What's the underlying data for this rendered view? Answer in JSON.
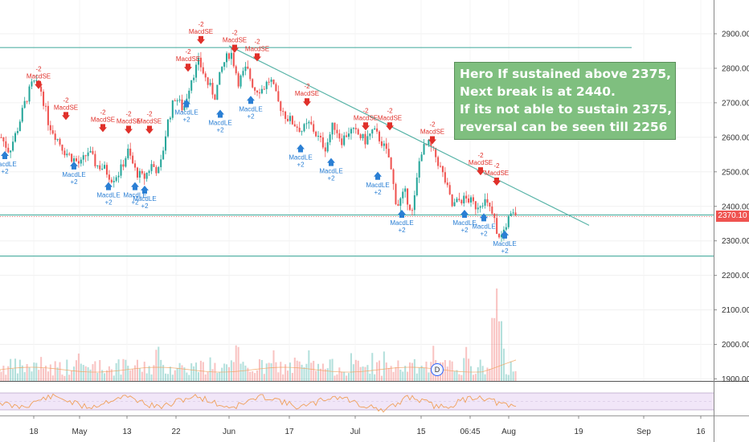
{
  "chart_data": {
    "type": "candlestick",
    "price_axis": {
      "ticks": [
        "2900.00",
        "2800.00",
        "2700.00",
        "2600.00",
        "2500.00",
        "2400.00",
        "2300.00",
        "2200.00",
        "2100.00",
        "2000.00",
        "1900.00"
      ],
      "range": [
        1880,
        2960
      ],
      "last_price_label": "2370.10"
    },
    "time_axis": {
      "ticks": [
        "18",
        "May",
        "13",
        "22",
        "Jun",
        "17",
        "Jul",
        "15",
        "06:45",
        "Aug",
        "19",
        "Sep",
        "16"
      ]
    },
    "horizontal_levels": [
      2860,
      2375,
      2256
    ],
    "trendline": {
      "from": [
        "2019-06-01",
        2865
      ],
      "to": [
        "2019-08-24",
        2345
      ]
    },
    "price_path": [
      [
        0,
        2600
      ],
      [
        0.02,
        2560
      ],
      [
        0.04,
        2620
      ],
      [
        0.06,
        2700
      ],
      [
        0.08,
        2760
      ],
      [
        0.1,
        2740
      ],
      [
        0.12,
        2640
      ],
      [
        0.14,
        2600
      ],
      [
        0.16,
        2560
      ],
      [
        0.18,
        2540
      ],
      [
        0.2,
        2520
      ],
      [
        0.22,
        2560
      ],
      [
        0.24,
        2520
      ],
      [
        0.26,
        2510
      ],
      [
        0.28,
        2480
      ],
      [
        0.3,
        2500
      ],
      [
        0.32,
        2560
      ],
      [
        0.34,
        2500
      ],
      [
        0.36,
        2480
      ],
      [
        0.38,
        2520
      ],
      [
        0.4,
        2500
      ],
      [
        0.42,
        2640
      ],
      [
        0.44,
        2720
      ],
      [
        0.46,
        2680
      ],
      [
        0.48,
        2770
      ],
      [
        0.5,
        2820
      ],
      [
        0.52,
        2760
      ],
      [
        0.54,
        2720
      ],
      [
        0.56,
        2810
      ],
      [
        0.58,
        2850
      ],
      [
        0.6,
        2760
      ],
      [
        0.62,
        2800
      ],
      [
        0.64,
        2740
      ],
      [
        0.66,
        2740
      ],
      [
        0.68,
        2770
      ],
      [
        0.7,
        2700
      ],
      [
        0.72,
        2660
      ],
      [
        0.74,
        2640
      ],
      [
        0.76,
        2620
      ],
      [
        0.78,
        2640
      ],
      [
        0.8,
        2600
      ],
      [
        0.82,
        2570
      ],
      [
        0.84,
        2640
      ],
      [
        0.86,
        2590
      ],
      [
        0.88,
        2620
      ],
      [
        0.9,
        2610
      ],
      [
        0.92,
        2590
      ],
      [
        0.94,
        2620
      ],
      [
        0.96,
        2590
      ],
      [
        0.98,
        2540
      ],
      [
        1.0,
        2400
      ],
      [
        1.02,
        2440
      ],
      [
        1.04,
        2380
      ],
      [
        1.06,
        2560
      ],
      [
        1.08,
        2580
      ],
      [
        1.1,
        2540
      ],
      [
        1.12,
        2480
      ],
      [
        1.14,
        2400
      ],
      [
        1.16,
        2420
      ],
      [
        1.18,
        2420
      ],
      [
        1.2,
        2400
      ],
      [
        1.22,
        2420
      ],
      [
        1.24,
        2380
      ],
      [
        1.26,
        2300
      ],
      [
        1.28,
        2360
      ],
      [
        1.3,
        2380
      ]
    ],
    "volume_pattern": "bars scaled by daily volume, spike near end of July",
    "signals": {
      "sell_label": "MacdSE",
      "sell_count": "-2",
      "buy_label": "MacdLE",
      "buy_count": "+2"
    },
    "indicator_pane": "RSI oscillator with shaded band",
    "colors": {
      "up": "#26a69a",
      "down": "#ef5350",
      "level_line": "#57b3a7",
      "trend_line": "#57b3a7",
      "buy_arrow": "#2a7fd4",
      "sell_arrow": "#e0302a",
      "note_bg": "#7fbf7f",
      "rsi_band": "#f1e6f8",
      "rsi_line": "#f0a05a"
    }
  },
  "annotation": {
    "lines": [
      "Hero If sustained above 2375,",
      "Next break is at 2440.",
      "If its not able to sustain 2375,",
      "reversal can be seen till 2256"
    ]
  },
  "badge": "D"
}
